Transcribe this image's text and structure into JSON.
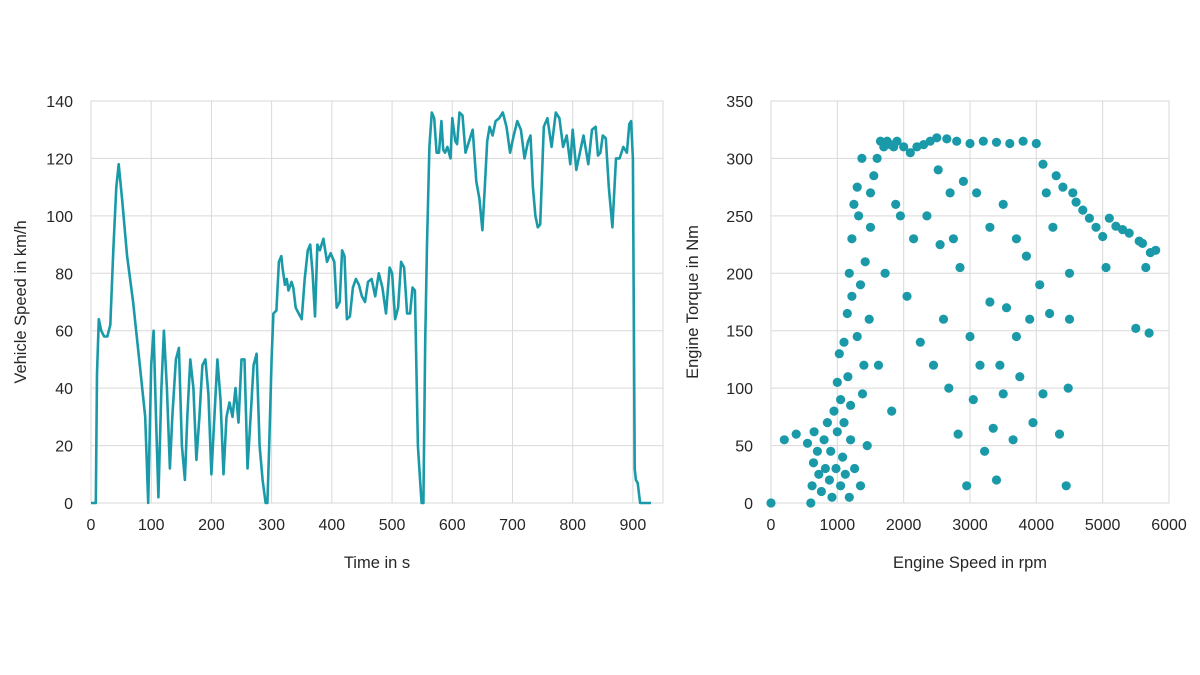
{
  "chart_data": [
    {
      "type": "line",
      "xlabel": "Time in s",
      "ylabel": "Vehicle Speed in km/h",
      "xlim": [
        0,
        950
      ],
      "ylim": [
        0,
        140
      ],
      "xticks": [
        0,
        100,
        200,
        300,
        400,
        500,
        600,
        700,
        800,
        900
      ],
      "yticks": [
        0,
        20,
        40,
        60,
        80,
        100,
        120,
        140
      ],
      "grid": true,
      "color": "#1a9aa8",
      "series": [
        {
          "x": [
            0,
            8,
            10,
            13,
            17,
            22,
            27,
            32,
            37,
            42,
            46,
            52,
            60,
            70,
            80,
            90,
            95,
            100,
            104,
            108,
            112,
            117,
            121,
            126,
            131,
            135,
            141,
            146,
            151,
            156,
            160,
            165,
            170,
            175,
            180,
            185,
            190,
            195,
            200,
            205,
            210,
            215,
            220,
            225,
            230,
            235,
            240,
            245,
            250,
            255,
            260,
            265,
            270,
            275,
            280,
            285,
            290,
            293,
            296,
            300,
            303,
            308,
            312,
            316,
            318,
            322,
            325,
            328,
            333,
            336,
            340,
            345,
            350,
            355,
            360,
            364,
            368,
            372,
            376,
            380,
            386,
            392,
            398,
            404,
            408,
            413,
            417,
            421,
            425,
            430,
            435,
            440,
            445,
            450,
            455,
            460,
            466,
            472,
            478,
            484,
            490,
            496,
            500,
            505,
            510,
            515,
            520,
            525,
            530,
            534,
            538,
            543,
            546,
            549,
            552,
            555,
            558,
            562,
            566,
            570,
            574,
            578,
            582,
            585,
            588,
            592,
            597,
            600,
            605,
            608,
            612,
            617,
            622,
            628,
            634,
            640,
            645,
            650,
            654,
            658,
            662,
            667,
            672,
            678,
            684,
            690,
            696,
            702,
            708,
            714,
            720,
            726,
            730,
            734,
            738,
            742,
            746,
            752,
            758,
            765,
            772,
            778,
            784,
            790,
            796,
            800,
            806,
            812,
            818,
            822,
            826,
            832,
            838,
            842,
            846,
            850,
            855,
            860,
            866,
            872,
            878,
            884,
            890,
            894,
            897,
            900,
            903,
            905,
            908,
            912,
            915,
            930
          ],
          "y": [
            0,
            0,
            45,
            64,
            60,
            58,
            58,
            62,
            88,
            110,
            118,
            105,
            86,
            70,
            50,
            30,
            0,
            48,
            60,
            30,
            2,
            40,
            60,
            40,
            12,
            30,
            50,
            54,
            20,
            8,
            30,
            50,
            40,
            15,
            30,
            48,
            50,
            38,
            10,
            30,
            50,
            36,
            10,
            30,
            35,
            30,
            40,
            28,
            50,
            50,
            12,
            30,
            48,
            52,
            20,
            8,
            0,
            0,
            20,
            50,
            66,
            67,
            84,
            86,
            82,
            76,
            78,
            74,
            77,
            75,
            68,
            66,
            64,
            78,
            88,
            90,
            80,
            65,
            90,
            88,
            92,
            84,
            87,
            84,
            68,
            70,
            88,
            86,
            64,
            65,
            75,
            78,
            76,
            72,
            70,
            77,
            78,
            72,
            80,
            75,
            66,
            82,
            80,
            64,
            68,
            84,
            82,
            66,
            66,
            75,
            74,
            20,
            10,
            0,
            0,
            56,
            90,
            124,
            136,
            134,
            122,
            122,
            133,
            123,
            122,
            124,
            120,
            134,
            126,
            125,
            136,
            135,
            122,
            126,
            130,
            112,
            106,
            95,
            110,
            126,
            131,
            128,
            133,
            134,
            136,
            131,
            122,
            128,
            133,
            130,
            120,
            126,
            128,
            110,
            100,
            96,
            97,
            131,
            134,
            124,
            136,
            134,
            124,
            128,
            118,
            130,
            116,
            122,
            128,
            123,
            118,
            130,
            131,
            121,
            122,
            128,
            127,
            110,
            96,
            120,
            120,
            124,
            122,
            132,
            133,
            120,
            12,
            8,
            7,
            0,
            0,
            0
          ]
        }
      ]
    },
    {
      "type": "scatter",
      "xlabel": "Engine Speed in rpm",
      "ylabel": "Engine Torque in Nm",
      "xlim": [
        0,
        6000
      ],
      "ylim": [
        0,
        350
      ],
      "xticks": [
        0,
        1000,
        2000,
        3000,
        4000,
        5000,
        6000
      ],
      "yticks": [
        0,
        50,
        100,
        150,
        200,
        250,
        300,
        350
      ],
      "grid": true,
      "color": "#1a9aa8",
      "series": [
        {
          "points": [
            [
              0,
              0
            ],
            [
              200,
              55
            ],
            [
              380,
              60
            ],
            [
              550,
              52
            ],
            [
              600,
              0
            ],
            [
              620,
              15
            ],
            [
              640,
              35
            ],
            [
              650,
              62
            ],
            [
              700,
              45
            ],
            [
              720,
              25
            ],
            [
              760,
              10
            ],
            [
              800,
              55
            ],
            [
              820,
              30
            ],
            [
              850,
              70
            ],
            [
              880,
              20
            ],
            [
              900,
              45
            ],
            [
              920,
              5
            ],
            [
              950,
              80
            ],
            [
              980,
              30
            ],
            [
              1000,
              105
            ],
            [
              1000,
              62
            ],
            [
              1030,
              130
            ],
            [
              1050,
              15
            ],
            [
              1050,
              90
            ],
            [
              1080,
              40
            ],
            [
              1100,
              140
            ],
            [
              1100,
              70
            ],
            [
              1120,
              25
            ],
            [
              1150,
              165
            ],
            [
              1160,
              110
            ],
            [
              1180,
              5
            ],
            [
              1180,
              200
            ],
            [
              1200,
              55
            ],
            [
              1200,
              85
            ],
            [
              1220,
              180
            ],
            [
              1220,
              230
            ],
            [
              1250,
              260
            ],
            [
              1260,
              30
            ],
            [
              1300,
              275
            ],
            [
              1300,
              145
            ],
            [
              1320,
              250
            ],
            [
              1350,
              190
            ],
            [
              1350,
              15
            ],
            [
              1370,
              300
            ],
            [
              1380,
              95
            ],
            [
              1400,
              120
            ],
            [
              1420,
              210
            ],
            [
              1450,
              50
            ],
            [
              1480,
              160
            ],
            [
              1500,
              240
            ],
            [
              1500,
              270
            ],
            [
              1550,
              285
            ],
            [
              1600,
              300
            ],
            [
              1620,
              120
            ],
            [
              1650,
              315
            ],
            [
              1700,
              310
            ],
            [
              1720,
              200
            ],
            [
              1750,
              315
            ],
            [
              1800,
              312
            ],
            [
              1820,
              80
            ],
            [
              1850,
              310
            ],
            [
              1880,
              260
            ],
            [
              1900,
              315
            ],
            [
              1950,
              250
            ],
            [
              2000,
              310
            ],
            [
              2050,
              180
            ],
            [
              2100,
              305
            ],
            [
              2150,
              230
            ],
            [
              2200,
              310
            ],
            [
              2250,
              140
            ],
            [
              2300,
              312
            ],
            [
              2350,
              250
            ],
            [
              2400,
              315
            ],
            [
              2450,
              120
            ],
            [
              2500,
              318
            ],
            [
              2520,
              290
            ],
            [
              2550,
              225
            ],
            [
              2600,
              160
            ],
            [
              2650,
              317
            ],
            [
              2680,
              100
            ],
            [
              2700,
              270
            ],
            [
              2750,
              230
            ],
            [
              2800,
              315
            ],
            [
              2820,
              60
            ],
            [
              2850,
              205
            ],
            [
              2900,
              280
            ],
            [
              2950,
              15
            ],
            [
              3000,
              313
            ],
            [
              3000,
              145
            ],
            [
              3050,
              90
            ],
            [
              3100,
              270
            ],
            [
              3150,
              120
            ],
            [
              3200,
              315
            ],
            [
              3220,
              45
            ],
            [
              3300,
              240
            ],
            [
              3300,
              175
            ],
            [
              3350,
              65
            ],
            [
              3400,
              314
            ],
            [
              3400,
              20
            ],
            [
              3450,
              120
            ],
            [
              3500,
              95
            ],
            [
              3500,
              260
            ],
            [
              3550,
              170
            ],
            [
              3600,
              313
            ],
            [
              3650,
              55
            ],
            [
              3700,
              230
            ],
            [
              3700,
              145
            ],
            [
              3750,
              110
            ],
            [
              3800,
              315
            ],
            [
              3850,
              215
            ],
            [
              3900,
              160
            ],
            [
              3950,
              70
            ],
            [
              4000,
              313
            ],
            [
              4050,
              190
            ],
            [
              4100,
              295
            ],
            [
              4100,
              95
            ],
            [
              4150,
              270
            ],
            [
              4200,
              165
            ],
            [
              4250,
              240
            ],
            [
              4300,
              285
            ],
            [
              4350,
              60
            ],
            [
              4400,
              275
            ],
            [
              4450,
              15
            ],
            [
              4480,
              100
            ],
            [
              4500,
              200
            ],
            [
              4500,
              160
            ],
            [
              4550,
              270
            ],
            [
              4600,
              262
            ],
            [
              4700,
              255
            ],
            [
              4800,
              248
            ],
            [
              4900,
              240
            ],
            [
              5000,
              232
            ],
            [
              5050,
              205
            ],
            [
              5100,
              248
            ],
            [
              5200,
              241
            ],
            [
              5300,
              238
            ],
            [
              5400,
              235
            ],
            [
              5500,
              152
            ],
            [
              5550,
              228
            ],
            [
              5600,
              226
            ],
            [
              5650,
              205
            ],
            [
              5700,
              148
            ],
            [
              5720,
              218
            ],
            [
              5800,
              220
            ]
          ]
        }
      ]
    }
  ]
}
